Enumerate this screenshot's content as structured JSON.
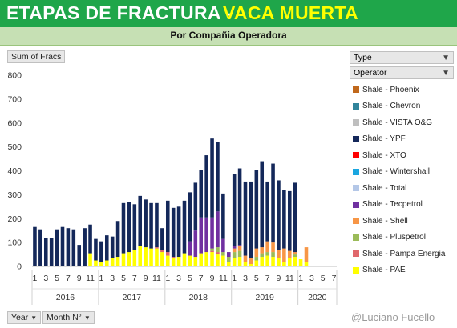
{
  "header": {
    "title_left": "ETAPAS DE FRACTURA -",
    "title_right": "VACA MUERTA",
    "subtitle": "Por Compañia Operadora"
  },
  "pivot": {
    "value_field": "Sum of Fracs",
    "legend_field": "Type",
    "legend_subfield": "Operator",
    "row_field_1": "Year",
    "row_field_2": "Month N°"
  },
  "watermark": "@Luciano Fucello",
  "colors": {
    "banner": "#1fa64a",
    "subbar": "#c6e0b4",
    "accent_title": "#ffff00"
  },
  "chart_data": {
    "type": "bar",
    "stacked": true,
    "ylim": [
      0,
      800
    ],
    "yticks": [
      0,
      100,
      200,
      300,
      400,
      500,
      600,
      700,
      800
    ],
    "grid": false,
    "legend_placement": "right",
    "x": [
      {
        "year": "2016",
        "month": 1
      },
      {
        "year": "2016",
        "month": 2
      },
      {
        "year": "2016",
        "month": 3
      },
      {
        "year": "2016",
        "month": 4
      },
      {
        "year": "2016",
        "month": 5
      },
      {
        "year": "2016",
        "month": 6
      },
      {
        "year": "2016",
        "month": 7
      },
      {
        "year": "2016",
        "month": 8
      },
      {
        "year": "2016",
        "month": 9
      },
      {
        "year": "2016",
        "month": 10
      },
      {
        "year": "2016",
        "month": 11
      },
      {
        "year": "2016",
        "month": 12
      },
      {
        "year": "2017",
        "month": 1
      },
      {
        "year": "2017",
        "month": 2
      },
      {
        "year": "2017",
        "month": 3
      },
      {
        "year": "2017",
        "month": 4
      },
      {
        "year": "2017",
        "month": 5
      },
      {
        "year": "2017",
        "month": 6
      },
      {
        "year": "2017",
        "month": 7
      },
      {
        "year": "2017",
        "month": 8
      },
      {
        "year": "2017",
        "month": 9
      },
      {
        "year": "2017",
        "month": 10
      },
      {
        "year": "2017",
        "month": 11
      },
      {
        "year": "2017",
        "month": 12
      },
      {
        "year": "2018",
        "month": 1
      },
      {
        "year": "2018",
        "month": 2
      },
      {
        "year": "2018",
        "month": 3
      },
      {
        "year": "2018",
        "month": 4
      },
      {
        "year": "2018",
        "month": 5
      },
      {
        "year": "2018",
        "month": 6
      },
      {
        "year": "2018",
        "month": 7
      },
      {
        "year": "2018",
        "month": 8
      },
      {
        "year": "2018",
        "month": 9
      },
      {
        "year": "2018",
        "month": 10
      },
      {
        "year": "2018",
        "month": 11
      },
      {
        "year": "2018",
        "month": 12
      },
      {
        "year": "2019",
        "month": 1
      },
      {
        "year": "2019",
        "month": 2
      },
      {
        "year": "2019",
        "month": 3
      },
      {
        "year": "2019",
        "month": 4
      },
      {
        "year": "2019",
        "month": 5
      },
      {
        "year": "2019",
        "month": 6
      },
      {
        "year": "2019",
        "month": 7
      },
      {
        "year": "2019",
        "month": 8
      },
      {
        "year": "2019",
        "month": 9
      },
      {
        "year": "2019",
        "month": 10
      },
      {
        "year": "2019",
        "month": 11
      },
      {
        "year": "2019",
        "month": 12
      },
      {
        "year": "2020",
        "month": 1
      },
      {
        "year": "2020",
        "month": 2
      },
      {
        "year": "2020",
        "month": 3
      },
      {
        "year": "2020",
        "month": 4
      },
      {
        "year": "2020",
        "month": 5
      },
      {
        "year": "2020",
        "month": 6
      },
      {
        "year": "2020",
        "month": 7
      }
    ],
    "x_tick_labels": [
      "1",
      "",
      "3",
      "",
      "5",
      "",
      "7",
      "",
      "9",
      "",
      "11",
      "",
      "1",
      "",
      "3",
      "",
      "5",
      "",
      "7",
      "",
      "9",
      "",
      "11",
      "",
      "1",
      "",
      "3",
      "",
      "5",
      "",
      "7",
      "",
      "9",
      "",
      "11",
      "",
      "1",
      "",
      "3",
      "",
      "5",
      "",
      "7",
      "",
      "9",
      "",
      "11",
      "",
      "1",
      "",
      "3",
      "",
      "5",
      "",
      "7"
    ],
    "year_groups": [
      {
        "label": "2016",
        "count": 12
      },
      {
        "label": "2017",
        "count": 12
      },
      {
        "label": "2018",
        "count": 12
      },
      {
        "label": "2019",
        "count": 12
      },
      {
        "label": "2020",
        "count": 7
      }
    ],
    "series": [
      {
        "name": "Shale - PAE",
        "color": "#ffff00",
        "values": [
          0,
          0,
          0,
          0,
          0,
          0,
          0,
          0,
          0,
          0,
          55,
          25,
          20,
          25,
          35,
          40,
          55,
          60,
          70,
          85,
          80,
          75,
          75,
          60,
          45,
          35,
          40,
          55,
          45,
          40,
          55,
          60,
          60,
          50,
          45,
          20,
          35,
          40,
          20,
          10,
          25,
          40,
          45,
          40,
          35,
          20,
          35,
          40,
          30,
          20,
          0,
          0,
          0,
          0,
          0
        ]
      },
      {
        "name": "Shale - Pampa Energia",
        "color": "#e0686c",
        "values": [
          0,
          0,
          0,
          0,
          0,
          0,
          0,
          0,
          0,
          0,
          0,
          0,
          0,
          0,
          0,
          0,
          0,
          0,
          0,
          0,
          0,
          0,
          5,
          10,
          15,
          5,
          0,
          0,
          0,
          0,
          0,
          0,
          5,
          10,
          0,
          0,
          0,
          0,
          0,
          0,
          0,
          0,
          0,
          0,
          0,
          0,
          0,
          0,
          0,
          0,
          0,
          0,
          0,
          0,
          0
        ]
      },
      {
        "name": "Shale - Pluspetrol",
        "color": "#9bbb59",
        "values": [
          0,
          0,
          0,
          0,
          0,
          0,
          0,
          0,
          0,
          0,
          0,
          0,
          0,
          0,
          0,
          0,
          0,
          0,
          0,
          0,
          0,
          0,
          0,
          0,
          0,
          0,
          0,
          0,
          0,
          0,
          0,
          0,
          10,
          20,
          15,
          20,
          25,
          25,
          0,
          0,
          15,
          15,
          15,
          20,
          0,
          0,
          0,
          10,
          0,
          0,
          0,
          0,
          0,
          0,
          0
        ]
      },
      {
        "name": "Shale - Shell",
        "color": "#f79646",
        "values": [
          0,
          0,
          0,
          0,
          0,
          0,
          0,
          0,
          0,
          0,
          0,
          0,
          0,
          0,
          0,
          0,
          0,
          0,
          0,
          0,
          0,
          0,
          0,
          0,
          0,
          0,
          0,
          0,
          0,
          0,
          0,
          0,
          0,
          0,
          0,
          0,
          15,
          20,
          25,
          25,
          35,
          25,
          45,
          40,
          35,
          55,
          30,
          10,
          0,
          60,
          0,
          0,
          0,
          0,
          0
        ]
      },
      {
        "name": "Shale - Tecpetrol",
        "color": "#7030a0",
        "values": [
          0,
          0,
          0,
          0,
          0,
          0,
          0,
          0,
          0,
          0,
          0,
          0,
          0,
          0,
          0,
          0,
          0,
          0,
          0,
          0,
          0,
          0,
          0,
          0,
          0,
          0,
          0,
          0,
          60,
          110,
          150,
          145,
          130,
          150,
          55,
          20,
          10,
          5,
          0,
          0,
          0,
          0,
          0,
          0,
          0,
          0,
          0,
          0,
          0,
          0,
          0,
          0,
          0,
          0,
          0
        ]
      },
      {
        "name": "Shale - Total",
        "color": "#b4c7e7",
        "values": [
          0,
          0,
          0,
          0,
          0,
          0,
          0,
          0,
          0,
          0,
          0,
          0,
          0,
          0,
          0,
          0,
          0,
          0,
          0,
          0,
          0,
          0,
          0,
          0,
          0,
          0,
          0,
          0,
          0,
          0,
          0,
          0,
          0,
          0,
          0,
          0,
          0,
          0,
          0,
          0,
          0,
          0,
          0,
          0,
          0,
          0,
          0,
          0,
          0,
          0,
          0,
          0,
          0,
          0,
          0
        ]
      },
      {
        "name": "Shale - Wintershall",
        "color": "#1aa6e0",
        "values": [
          0,
          0,
          0,
          0,
          0,
          0,
          0,
          0,
          0,
          0,
          0,
          0,
          0,
          0,
          0,
          0,
          0,
          0,
          0,
          0,
          0,
          0,
          0,
          0,
          0,
          0,
          0,
          0,
          0,
          0,
          0,
          0,
          0,
          0,
          0,
          0,
          0,
          0,
          0,
          0,
          0,
          0,
          0,
          0,
          0,
          0,
          0,
          0,
          0,
          0,
          0,
          0,
          0,
          0,
          0
        ]
      },
      {
        "name": "Shale - XTO",
        "color": "#ff0000",
        "values": [
          0,
          0,
          0,
          0,
          0,
          0,
          0,
          0,
          0,
          0,
          0,
          0,
          0,
          0,
          0,
          0,
          0,
          0,
          0,
          0,
          0,
          0,
          0,
          0,
          0,
          0,
          0,
          0,
          0,
          0,
          0,
          0,
          0,
          0,
          0,
          0,
          0,
          0,
          0,
          0,
          0,
          0,
          0,
          0,
          0,
          0,
          0,
          0,
          0,
          0,
          0,
          0,
          0,
          0,
          0
        ]
      },
      {
        "name": "Shale - YPF",
        "color": "#14285a",
        "values": [
          165,
          155,
          120,
          120,
          155,
          165,
          160,
          155,
          90,
          160,
          120,
          90,
          85,
          105,
          90,
          150,
          210,
          210,
          190,
          210,
          200,
          190,
          185,
          90,
          215,
          205,
          210,
          220,
          205,
          200,
          200,
          260,
          330,
          290,
          190,
          0,
          300,
          320,
          310,
          320,
          330,
          360,
          250,
          330,
          290,
          245,
          250,
          290,
          0,
          0,
          0,
          0,
          0,
          0,
          0
        ]
      },
      {
        "name": "Shale - VISTA O&G",
        "color": "#bfbfbf",
        "values": [
          0,
          0,
          0,
          0,
          0,
          0,
          0,
          0,
          0,
          0,
          0,
          0,
          0,
          0,
          0,
          0,
          0,
          0,
          0,
          0,
          0,
          0,
          0,
          0,
          0,
          0,
          0,
          0,
          0,
          0,
          0,
          0,
          0,
          0,
          0,
          0,
          0,
          0,
          0,
          0,
          0,
          0,
          0,
          0,
          0,
          0,
          0,
          0,
          0,
          0,
          0,
          0,
          0,
          0,
          0
        ]
      },
      {
        "name": "Shale - Chevron",
        "color": "#31849b",
        "values": [
          0,
          0,
          0,
          0,
          0,
          0,
          0,
          0,
          0,
          0,
          0,
          0,
          0,
          0,
          0,
          0,
          0,
          0,
          0,
          0,
          0,
          0,
          0,
          0,
          0,
          0,
          0,
          0,
          0,
          0,
          0,
          0,
          0,
          0,
          0,
          0,
          0,
          0,
          0,
          0,
          0,
          0,
          0,
          0,
          0,
          0,
          0,
          0,
          0,
          0,
          0,
          0,
          0,
          0,
          0
        ]
      },
      {
        "name": "Shale - Phoenix",
        "color": "#c0681c",
        "values": [
          0,
          0,
          0,
          0,
          0,
          0,
          0,
          0,
          0,
          0,
          0,
          0,
          0,
          0,
          0,
          0,
          0,
          0,
          0,
          0,
          0,
          0,
          0,
          0,
          0,
          0,
          0,
          0,
          0,
          0,
          0,
          0,
          0,
          0,
          0,
          0,
          0,
          0,
          0,
          0,
          0,
          0,
          0,
          0,
          0,
          0,
          0,
          0,
          0,
          0,
          0,
          0,
          0,
          0,
          0
        ]
      }
    ]
  },
  "legend_items": [
    {
      "label": "Shale - Phoenix",
      "color": "#c0681c"
    },
    {
      "label": "Shale - Chevron",
      "color": "#31849b"
    },
    {
      "label": "Shale - VISTA O&G",
      "color": "#bfbfbf"
    },
    {
      "label": "Shale - YPF",
      "color": "#14285a"
    },
    {
      "label": "Shale - XTO",
      "color": "#ff0000"
    },
    {
      "label": "Shale - Wintershall",
      "color": "#1aa6e0"
    },
    {
      "label": "Shale - Total",
      "color": "#b4c7e7"
    },
    {
      "label": "Shale - Tecpetrol",
      "color": "#7030a0"
    },
    {
      "label": "Shale - Shell",
      "color": "#f79646"
    },
    {
      "label": "Shale - Pluspetrol",
      "color": "#9bbb59"
    },
    {
      "label": "Shale - Pampa Energia",
      "color": "#e0686c"
    },
    {
      "label": "Shale - PAE",
      "color": "#ffff00"
    }
  ]
}
